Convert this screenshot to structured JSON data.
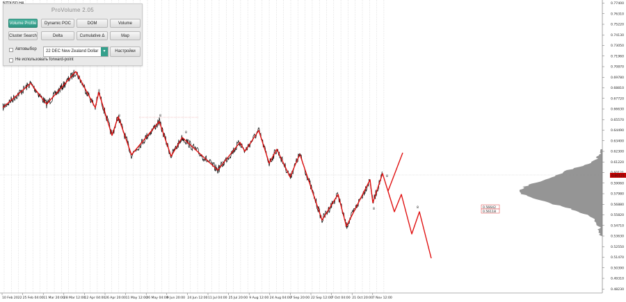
{
  "window": {
    "symbol": "NZDUSD,H4"
  },
  "panel": {
    "title": "ProVolume 2.05",
    "buttons": [
      [
        "Volume Profile",
        "Dynamic POC",
        "DOM",
        "Volume"
      ],
      [
        "Cluster Search",
        "Delta",
        "Cumulative Δ",
        "Map"
      ]
    ],
    "autoselect_label": "Автовыбор",
    "instrument_value": "22 DEC New Zealand Dollar",
    "settings_label": "Настройки",
    "forward_point_label": "Не использовать forward-point"
  },
  "colors": {
    "wave": "#e01010",
    "vline": "#c4c4c4",
    "profile": "#8a8a8a",
    "current_price_box": "#c00000",
    "panel_active": "#35a08c"
  },
  "axis": {
    "price_labels": [
      "0.77400",
      "0.76310",
      "0.75220",
      "0.74130",
      "0.73050",
      "0.71960",
      "0.70870",
      "0.69780",
      "0.68810",
      "0.67720",
      "0.66630",
      "0.65570",
      "0.64490",
      "0.63400",
      "0.62300",
      "0.61220",
      "0.60121",
      "0.59060",
      "0.57980",
      "0.56880",
      "0.55820",
      "0.54710",
      "0.53630",
      "0.52550",
      "0.51470",
      "0.50390",
      "0.49310",
      "0.48230"
    ],
    "current_price": "0.60121",
    "date_labels": [
      "10 Feb 2022",
      "25 Feb 04:00",
      "11 Mar 20:00",
      "28 Mar 12:00",
      "12 Apr 04:00",
      "26 Apr 20:00",
      "11 May 12:00",
      "26 May 04:00",
      "9 Jun 20:00",
      "24 Jun 12:00",
      "11 Jul 04:00",
      "25 Jul 20:00",
      "9 Aug 12:00",
      "24 Aug 04:00",
      "7 Sep 20:00",
      "22 Sep 12:00",
      "7 Oct 04:00",
      "21 Oct 20:00",
      "7 Nov 12:00"
    ]
  },
  "annotations": {
    "wave_markers": [
      "8",
      "8",
      "8",
      "8",
      "8",
      "8",
      "8",
      "8"
    ],
    "price_tags": [
      "0.56642",
      "0.56118"
    ]
  }
}
